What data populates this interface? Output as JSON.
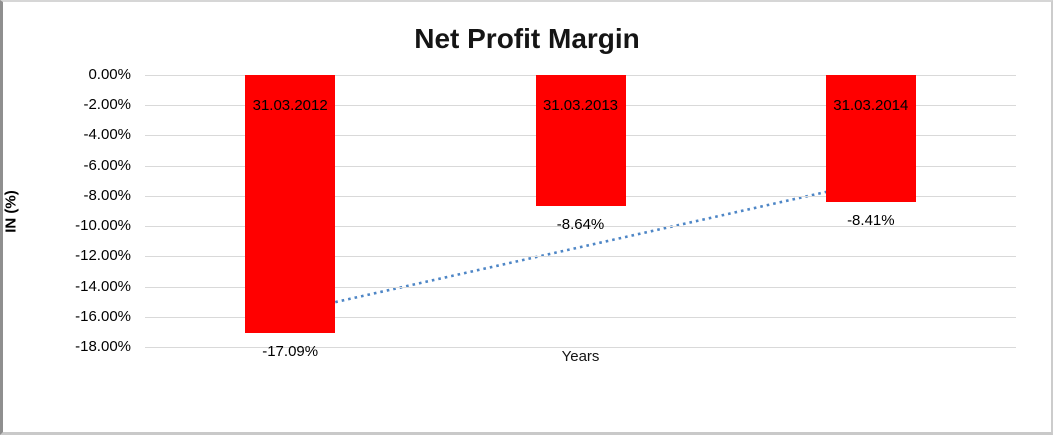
{
  "chart_data": {
    "type": "bar",
    "title": "Net Profit Margin",
    "xlabel": "Years",
    "ylabel": "IN (%)",
    "categories": [
      "31.03.2012",
      "31.03.2013",
      "31.03.2014"
    ],
    "values": [
      -17.09,
      -8.64,
      -8.41
    ],
    "data_labels": [
      "-17.09%",
      "-8.64%",
      "-8.41%"
    ],
    "ylim": [
      -18,
      0
    ],
    "ytick_step": 2,
    "ytick_labels": [
      "0.00%",
      "-2.00%",
      "-4.00%",
      "-6.00%",
      "-8.00%",
      "-10.00%",
      "-12.00%",
      "-14.00%",
      "-16.00%",
      "-18.00%"
    ],
    "grid": true,
    "legend": false,
    "bar_color": "#FF0000",
    "gridline_color": "#d9d9d9",
    "trendline": {
      "style": "dotted",
      "color": "#4E86C6",
      "points": [
        {
          "category_index": 0,
          "value": -15.7
        },
        {
          "category_index": 2,
          "value": -7.15
        }
      ]
    }
  }
}
